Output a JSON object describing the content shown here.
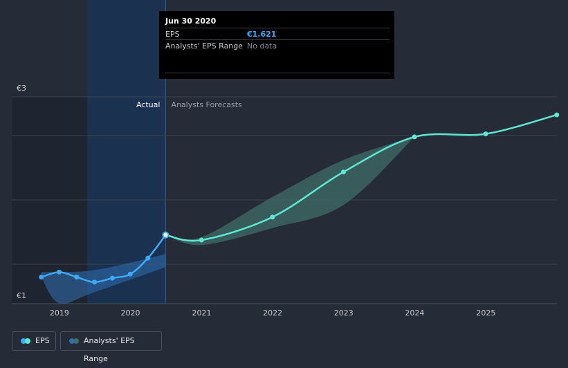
{
  "tooltip": {
    "date": "Jun 30 2020",
    "rows": [
      {
        "label": "EPS",
        "value": "€1.621"
      },
      {
        "label": "Analysts' EPS Range",
        "value": "No data"
      }
    ]
  },
  "legend": {
    "eps": "EPS",
    "range": "Analysts' EPS Range"
  },
  "colors": {
    "background": "#252b37",
    "actual_line": "#3fa9f5",
    "forecast_line": "#5ee8d0",
    "forecast_band": "#3f6e69",
    "actual_band": "#2f6fb0",
    "highlight": "#173559"
  },
  "chart_data": {
    "type": "line",
    "y_tick_labels": [
      "€3",
      "€1"
    ],
    "x_tick_labels": [
      "2019",
      "2020",
      "2021",
      "2022",
      "2023",
      "2024",
      "2025"
    ],
    "divider_labels": {
      "left": "Actual",
      "right": "Analysts Forecasts"
    },
    "xlim": [
      "2018-05-01",
      "2026-01-01"
    ],
    "ylim": [
      0.935,
      3.0
    ],
    "series": [
      {
        "name": "EPS",
        "kind": "actual",
        "points": [
          {
            "x": "2018-09-30",
            "y": 1.2
          },
          {
            "x": "2018-12-31",
            "y": 1.25
          },
          {
            "x": "2019-03-31",
            "y": 1.2
          },
          {
            "x": "2019-06-30",
            "y": 1.15
          },
          {
            "x": "2019-09-30",
            "y": 1.19
          },
          {
            "x": "2019-12-31",
            "y": 1.23
          },
          {
            "x": "2020-03-31",
            "y": 1.39
          },
          {
            "x": "2020-06-30",
            "y": 1.621
          }
        ]
      },
      {
        "name": "EPS",
        "kind": "forecast",
        "points": [
          {
            "x": "2020-06-30",
            "y": 1.621
          },
          {
            "x": "2020-12-31",
            "y": 1.57
          },
          {
            "x": "2021-12-31",
            "y": 1.8
          },
          {
            "x": "2022-12-31",
            "y": 2.25
          },
          {
            "x": "2023-12-31",
            "y": 2.6
          },
          {
            "x": "2024-12-31",
            "y": 2.63
          },
          {
            "x": "2025-12-31",
            "y": 2.82
          }
        ]
      }
    ],
    "range_actual": {
      "upper": [
        {
          "x": "2018-09-30",
          "y": 1.25
        },
        {
          "x": "2019-06-30",
          "y": 1.27
        },
        {
          "x": "2020-06-30",
          "y": 1.43
        }
      ],
      "lower": [
        {
          "x": "2018-09-30",
          "y": 1.2
        },
        {
          "x": "2018-12-31",
          "y": 0.94
        },
        {
          "x": "2019-06-30",
          "y": 1.05
        },
        {
          "x": "2020-06-30",
          "y": 1.3
        }
      ]
    },
    "range_forecast": {
      "upper": [
        {
          "x": "2020-06-30",
          "y": 1.621
        },
        {
          "x": "2020-12-31",
          "y": 1.6
        },
        {
          "x": "2021-12-31",
          "y": 2.0
        },
        {
          "x": "2022-12-31",
          "y": 2.37
        },
        {
          "x": "2023-12-31",
          "y": 2.6
        }
      ],
      "lower": [
        {
          "x": "2020-06-30",
          "y": 1.621
        },
        {
          "x": "2020-12-31",
          "y": 1.52
        },
        {
          "x": "2021-12-31",
          "y": 1.69
        },
        {
          "x": "2022-12-31",
          "y": 1.92
        },
        {
          "x": "2023-12-31",
          "y": 2.6
        }
      ]
    }
  }
}
